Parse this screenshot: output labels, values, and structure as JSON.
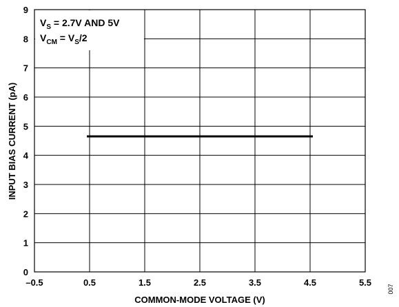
{
  "chart_data": {
    "type": "line",
    "title": "",
    "xlabel": "COMMON-MODE VOLTAGE (V)",
    "ylabel": "INPUT BIAS CURRENT (pA)",
    "xlim": [
      -0.5,
      5.5
    ],
    "ylim": [
      0,
      9
    ],
    "xticks": [
      -0.5,
      0.5,
      1.5,
      2.5,
      3.5,
      4.5,
      5.5
    ],
    "xtick_labels": [
      "–0.5",
      "0.5",
      "1.5",
      "2.5",
      "3.5",
      "4.5",
      "5.5"
    ],
    "yticks": [
      0,
      1,
      2,
      3,
      4,
      5,
      6,
      7,
      8,
      9
    ],
    "ytick_labels": [
      "0",
      "1",
      "2",
      "3",
      "4",
      "5",
      "6",
      "7",
      "8",
      "9"
    ],
    "grid": true,
    "series": [
      {
        "x": [
          0.45,
          4.55
        ],
        "y": [
          4.65,
          4.65
        ]
      }
    ],
    "annotations": {
      "line1": {
        "v": "V",
        "sub": "S",
        "rest": " = 2.7V AND 5V"
      },
      "line2": {
        "v": "V",
        "sub": "CM",
        "eq": " = V",
        "sub2": "S",
        "rest": "/2"
      }
    },
    "figure_number": "007"
  }
}
